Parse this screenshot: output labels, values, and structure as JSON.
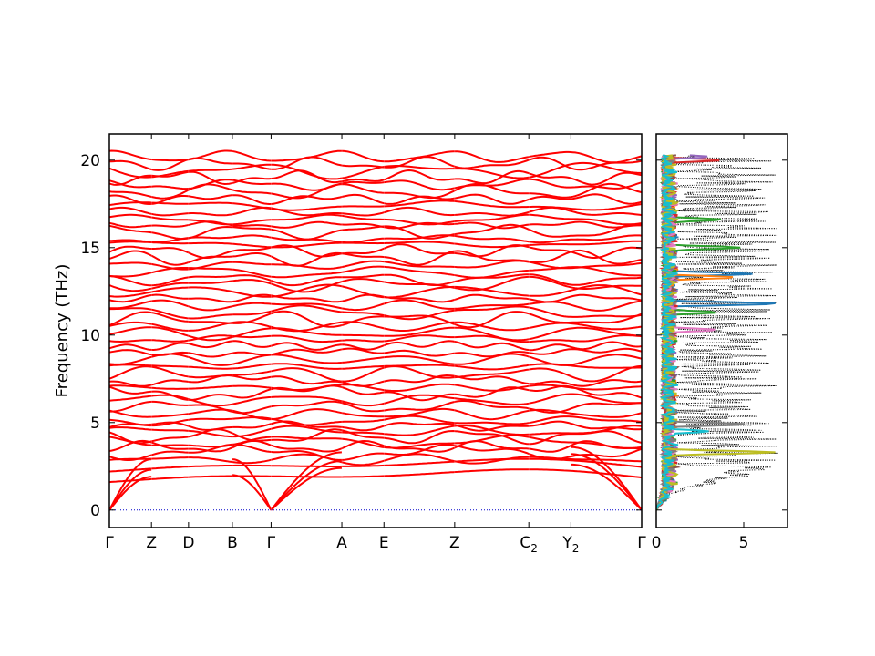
{
  "chart_data": [
    {
      "type": "line",
      "name": "phonon-band-structure",
      "xlabel": "",
      "ylabel": "Frequency (THz)",
      "ylim": [
        -1.0,
        21.5
      ],
      "yticks": [
        0,
        5,
        10,
        15,
        20
      ],
      "grid": false,
      "line_color": "#ff0000",
      "zero_line_color": "#0000cc",
      "kpoints": [
        {
          "label": "Γ",
          "sub": "",
          "x": 0.0
        },
        {
          "label": "Z",
          "sub": "",
          "x": 0.25
        },
        {
          "label": "D",
          "sub": "",
          "x": 0.47
        },
        {
          "label": "B",
          "sub": "",
          "x": 0.73
        },
        {
          "label": "Γ",
          "sub": "",
          "x": 0.96
        },
        {
          "label": "A",
          "sub": "",
          "x": 1.38
        },
        {
          "label": "E",
          "sub": "",
          "x": 1.63
        },
        {
          "label": "Z",
          "sub": "",
          "x": 2.05
        },
        {
          "label": "C",
          "sub": "2",
          "x": 2.49
        },
        {
          "label": "Y",
          "sub": "2",
          "x": 2.74
        },
        {
          "label": "Γ",
          "sub": "",
          "x": 3.16
        }
      ],
      "acoustic": [
        {
          "segment": "Γ-Z",
          "values": [
            0,
            1.9
          ],
          "shape": "linear"
        },
        {
          "segment": "Γ-Z",
          "values": [
            0,
            2.3
          ],
          "shape": "linear"
        },
        {
          "segment": "Γ-Z",
          "values": [
            0,
            2.9
          ],
          "shape": "linear"
        },
        {
          "segment": "B-Γ",
          "values": [
            2.0,
            0
          ],
          "shape": "linear"
        },
        {
          "segment": "B-Γ",
          "values": [
            2.9,
            0
          ],
          "shape": "linear"
        },
        {
          "segment": "Γ-A",
          "values": [
            0,
            2.4
          ],
          "shape": "linear"
        },
        {
          "segment": "Γ-A",
          "values": [
            0,
            2.8
          ],
          "shape": "linear"
        },
        {
          "segment": "Γ-A",
          "values": [
            0,
            3.3
          ],
          "shape": "linear"
        },
        {
          "segment": "Y2-Γ",
          "values": [
            2.6,
            0
          ],
          "shape": "linear"
        },
        {
          "segment": "Y2-Γ",
          "values": [
            3.2,
            0
          ],
          "shape": "linear"
        },
        {
          "segment": "Y2-Γ",
          "values": [
            3.6,
            0
          ],
          "shape": "linear"
        }
      ],
      "optical_band_centers_THz": [
        1.9,
        2.5,
        2.9,
        3.3,
        3.6,
        3.9,
        4.2,
        4.5,
        4.8,
        5.1,
        5.5,
        5.9,
        6.3,
        6.7,
        7.0,
        7.4,
        7.8,
        8.2,
        8.6,
        9.0,
        9.4,
        9.8,
        10.1,
        10.5,
        10.9,
        11.3,
        11.7,
        12.1,
        12.5,
        12.9,
        13.2,
        13.6,
        14.0,
        14.4,
        14.8,
        15.2,
        15.5,
        15.9,
        16.3,
        16.6,
        17.0,
        17.4,
        17.8,
        18.2,
        18.6,
        19.0,
        19.4,
        19.8,
        20.2
      ]
    },
    {
      "type": "line",
      "name": "projected-dos",
      "xlabel": "",
      "ylabel": "",
      "xlim": [
        0,
        7.5
      ],
      "xticks": [
        0,
        5
      ],
      "ylim": [
        -1.0,
        21.5
      ],
      "grid": false,
      "total_dos_style": "dotted",
      "total_dos_color": "#000000",
      "series_colors": [
        "#1f77b4",
        "#ff7f0e",
        "#2ca02c",
        "#d62728",
        "#9467bd",
        "#8c564b",
        "#e377c2",
        "#7f7f7f",
        "#bcbd22",
        "#17becf"
      ],
      "total_dos": {
        "freq": [
          0.5,
          1.0,
          1.5,
          2.0,
          2.5,
          3.0,
          3.5,
          4.0,
          4.5,
          5.0,
          5.5,
          6.0,
          6.5,
          7.0,
          7.5,
          8.0,
          8.5,
          9.0,
          9.5,
          10.0,
          10.5,
          11.0,
          11.5,
          12.0,
          12.5,
          13.0,
          13.5,
          14.0,
          14.5,
          15.0,
          15.5,
          16.0,
          16.5,
          17.0,
          17.5,
          18.0,
          18.5,
          19.0,
          19.5,
          20.0
        ],
        "values": [
          0.3,
          1.2,
          3.5,
          6.0,
          7.2,
          7.3,
          6.8,
          7.2,
          7.0,
          7.2,
          6.0,
          6.5,
          5.5,
          7.2,
          6.0,
          6.8,
          7.0,
          6.5,
          7.0,
          7.2,
          6.5,
          7.0,
          7.3,
          7.2,
          7.0,
          7.3,
          7.2,
          7.3,
          7.0,
          7.2,
          7.0,
          7.2,
          7.0,
          7.3,
          6.8,
          7.0,
          6.5,
          7.2,
          6.0,
          7.3
        ]
      },
      "pdos_peaks": [
        {
          "series": 0,
          "freq": 11.8,
          "value": 7.0
        },
        {
          "series": 0,
          "freq": 13.5,
          "value": 5.5
        },
        {
          "series": 1,
          "freq": 13.3,
          "value": 4.5
        },
        {
          "series": 2,
          "freq": 15.0,
          "value": 4.8
        },
        {
          "series": 2,
          "freq": 11.3,
          "value": 3.5
        },
        {
          "series": 2,
          "freq": 16.6,
          "value": 3.8
        },
        {
          "series": 3,
          "freq": 20.0,
          "value": 3.7
        },
        {
          "series": 4,
          "freq": 20.2,
          "value": 3.0
        },
        {
          "series": 6,
          "freq": 10.3,
          "value": 3.5
        },
        {
          "series": 7,
          "freq": 4.9,
          "value": 5.2
        },
        {
          "series": 8,
          "freq": 3.3,
          "value": 6.8
        },
        {
          "series": 9,
          "freq": 4.5,
          "value": 3.0
        }
      ]
    }
  ]
}
